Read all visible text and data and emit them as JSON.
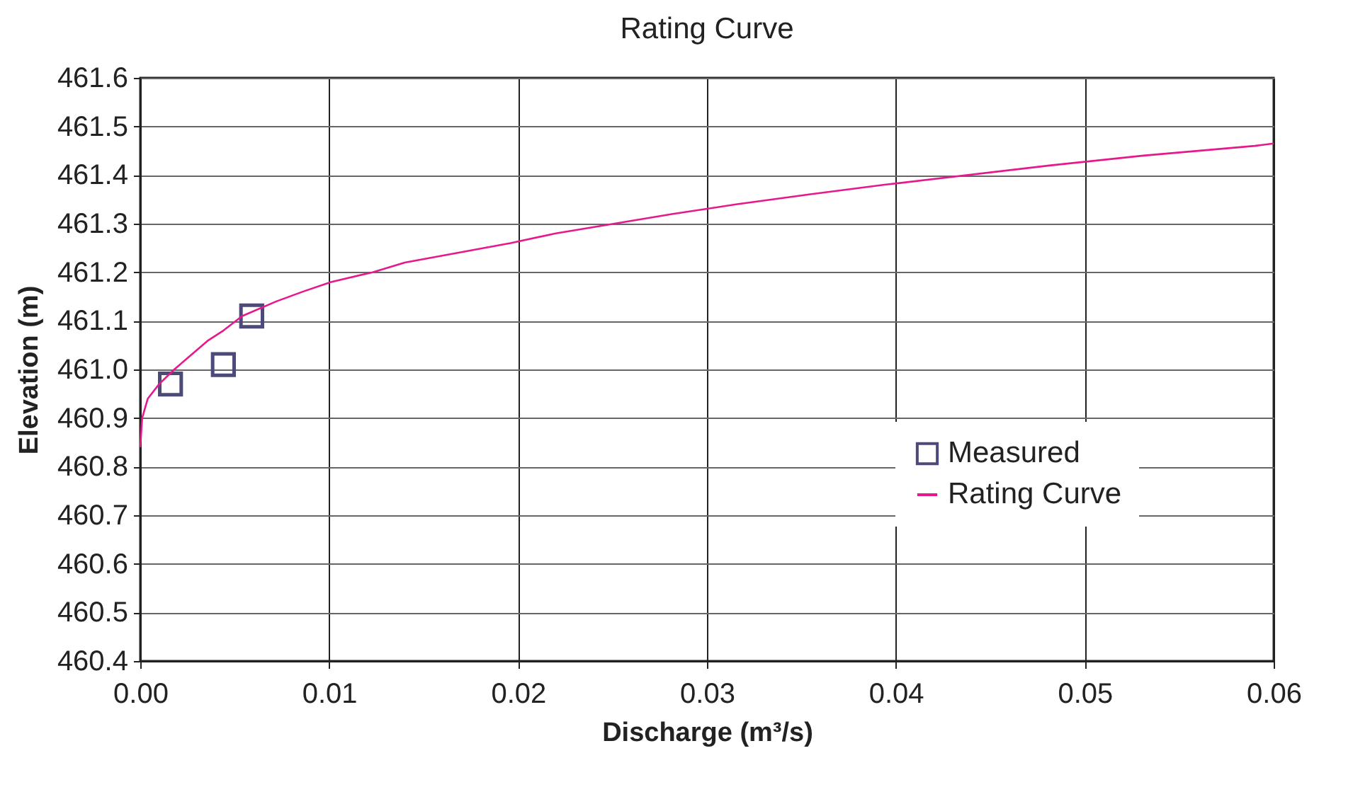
{
  "chart_data": {
    "type": "line",
    "title": "Rating Curve",
    "xlabel": "Discharge (m³/s)",
    "ylabel": "Elevation (m)",
    "xlim": [
      0,
      0.06
    ],
    "xticks": [
      {
        "value": 0,
        "label": "0.00"
      },
      {
        "value": 0.01,
        "label": "0.01"
      },
      {
        "value": 0.02,
        "label": "0.02"
      },
      {
        "value": 0.03,
        "label": "0.03"
      },
      {
        "value": 0.04,
        "label": "0.04"
      },
      {
        "value": 0.05,
        "label": "0.05"
      },
      {
        "value": 0.06,
        "label": "0.06"
      }
    ],
    "ylim": [
      460.4,
      461.6
    ],
    "yticks": [
      {
        "value": 460.4,
        "label": "460.4"
      },
      {
        "value": 460.5,
        "label": "460.5"
      },
      {
        "value": 460.6,
        "label": "460.6"
      },
      {
        "value": 460.7,
        "label": "460.7"
      },
      {
        "value": 460.8,
        "label": "460.8"
      },
      {
        "value": 460.9,
        "label": "460.9"
      },
      {
        "value": 461.0,
        "label": "461.0"
      },
      {
        "value": 461.1,
        "label": "461.1"
      },
      {
        "value": 461.2,
        "label": "461.2"
      },
      {
        "value": 461.3,
        "label": "461.3"
      },
      {
        "value": 461.4,
        "label": "461.4"
      },
      {
        "value": 461.5,
        "label": "461.5"
      },
      {
        "value": 461.6,
        "label": "461.6"
      }
    ],
    "grid": true,
    "legend": "bottom right",
    "series": [
      {
        "name": "Measured",
        "type": "scatter",
        "marker": "square",
        "color": "#4b4a78",
        "x": [
          0.0016,
          0.0044,
          0.0059
        ],
        "values": [
          460.97,
          461.01,
          461.11
        ]
      },
      {
        "name": "Rating Curve",
        "type": "line",
        "color": "#e6198c",
        "x": [
          0,
          0.0001,
          0.0004,
          0.001,
          0.0018,
          0.0024,
          0.0036,
          0.0044,
          0.0054,
          0.0072,
          0.0086,
          0.0101,
          0.0123,
          0.014,
          0.0168,
          0.0196,
          0.022,
          0.0282,
          0.0316,
          0.0354,
          0.0394,
          0.0482,
          0.0531,
          0.059,
          0.06
        ],
        "values": [
          460.84,
          460.9,
          460.94,
          460.97,
          461.0,
          461.02,
          461.06,
          461.08,
          461.11,
          461.14,
          461.16,
          461.18,
          461.2,
          461.22,
          461.24,
          461.26,
          461.28,
          461.32,
          461.34,
          461.36,
          461.38,
          461.42,
          461.44,
          461.46,
          461.465
        ]
      }
    ]
  }
}
